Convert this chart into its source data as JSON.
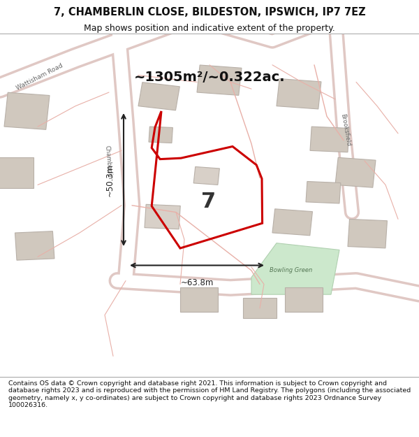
{
  "title_line1": "7, CHAMBERLIN CLOSE, BILDESTON, IPSWICH, IP7 7EZ",
  "title_line2": "Map shows position and indicative extent of the property.",
  "area_text": "~1305m²/~0.322ac.",
  "dim_width": "~63.8m",
  "dim_height": "~50.3m",
  "label_number": "7",
  "footer_text": "Contains OS data © Crown copyright and database right 2021. This information is subject to Crown copyright and database rights 2023 and is reproduced with the permission of HM Land Registry. The polygons (including the associated geometry, namely x, y co-ordinates) are subject to Crown copyright and database rights 2023 Ordnance Survey 100026316.",
  "map_bg": "#f5f3f0",
  "red_poly_color": "#cc0000",
  "measurement_color": "#222222",
  "title_color": "#111111",
  "footer_color": "#111111"
}
